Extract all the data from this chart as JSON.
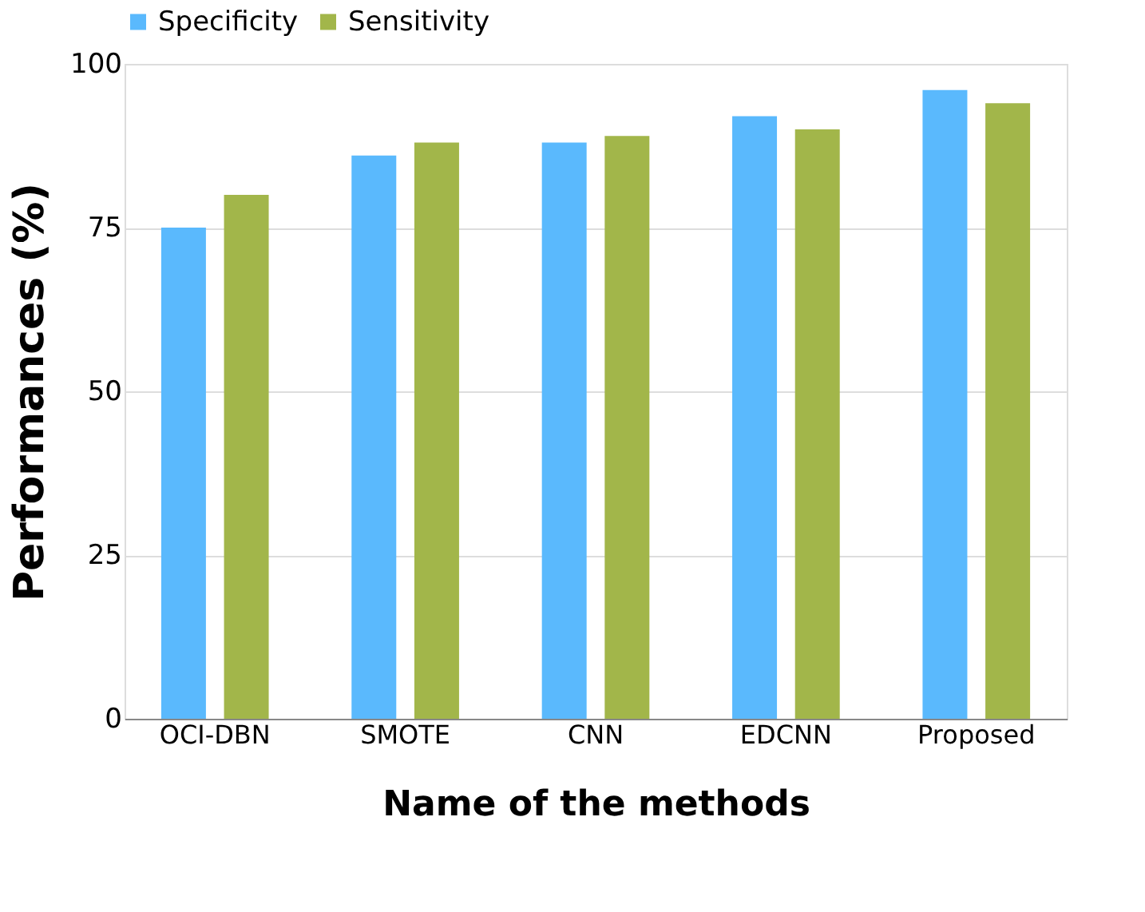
{
  "chart_data": {
    "type": "bar",
    "xlabel": "Name of the methods",
    "ylabel": "Performances (%)",
    "categories": [
      "OCI-DBN",
      "SMOTE",
      "CNN",
      "EDCNN",
      "Proposed"
    ],
    "series": [
      {
        "name": "Specificity",
        "color": "#5ab9fd",
        "values": [
          75,
          86,
          88,
          92,
          96
        ]
      },
      {
        "name": "Sensitivity",
        "color": "#a2b64a",
        "values": [
          80,
          88,
          89,
          90,
          94
        ]
      }
    ],
    "ylim": [
      0,
      100
    ],
    "yticks": [
      0,
      25,
      50,
      75,
      100
    ],
    "grid": "y",
    "legend": "top"
  }
}
